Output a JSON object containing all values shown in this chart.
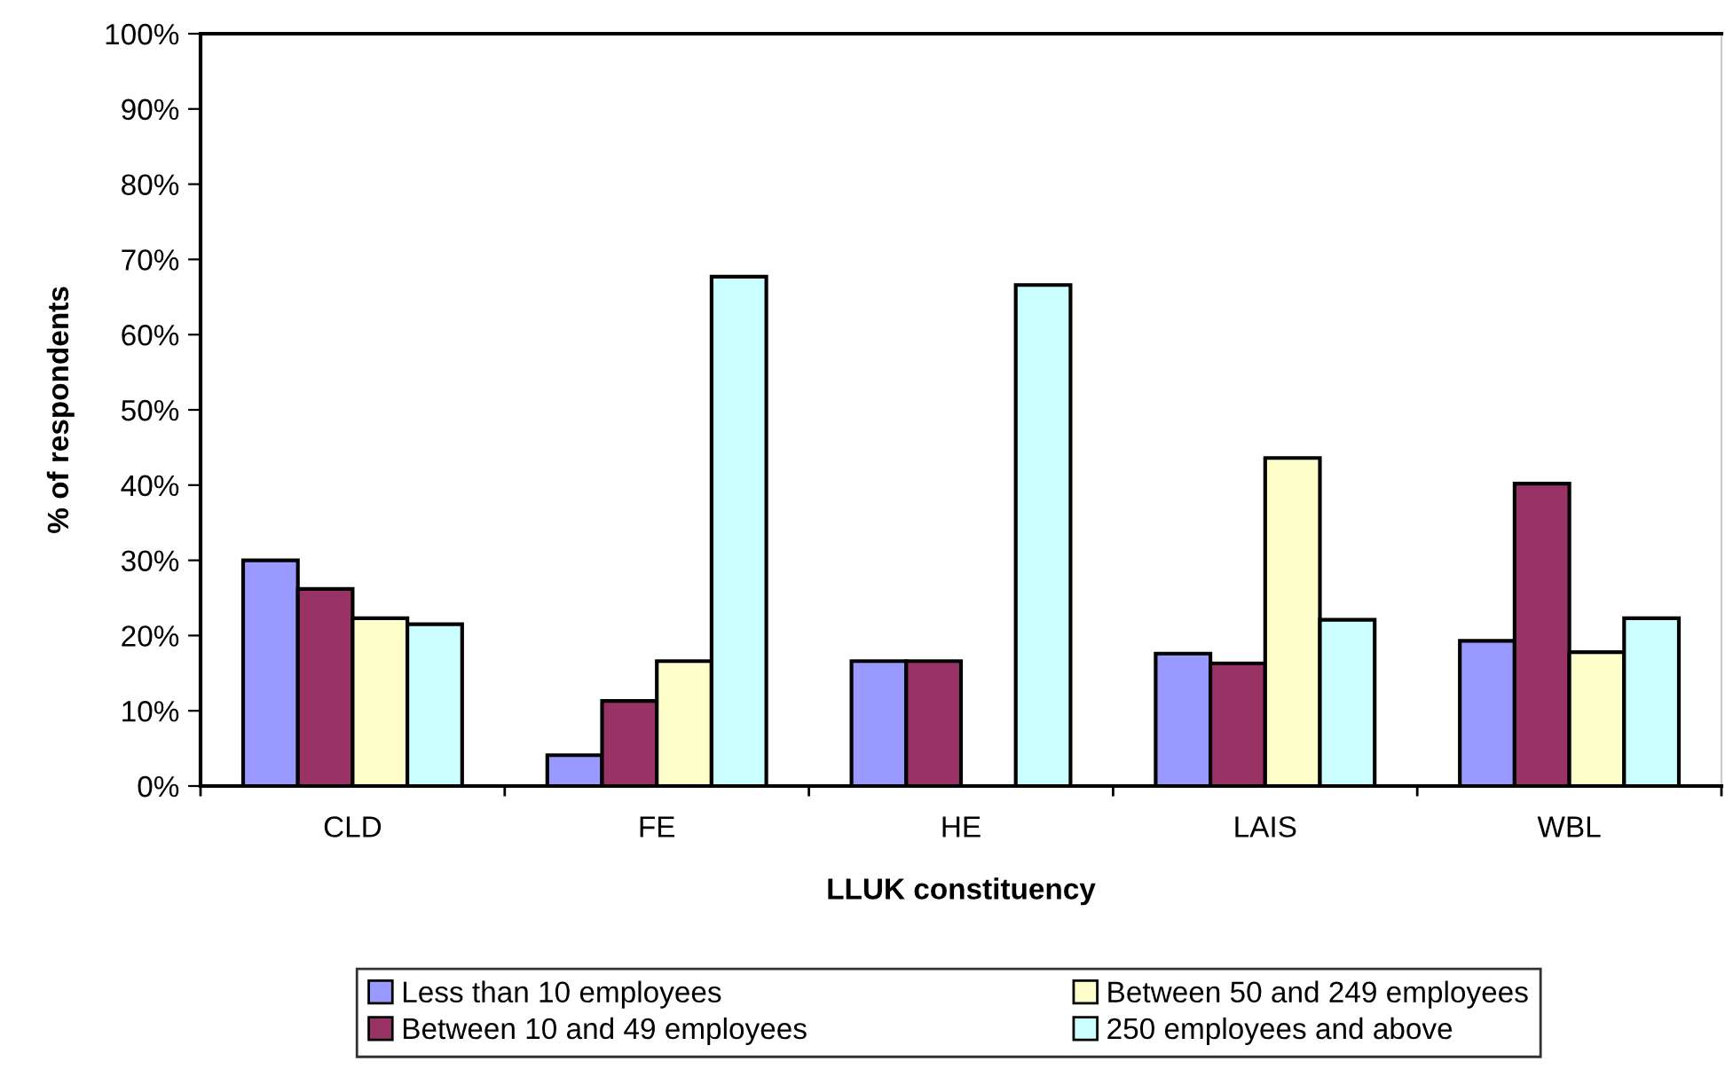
{
  "chart_data": {
    "type": "bar",
    "xlabel": "LLUK constituency",
    "ylabel": "% of respondents",
    "categories": [
      "CLD",
      "FE",
      "HE",
      "LAIS",
      "WBL"
    ],
    "series": [
      {
        "name": "Less than 10 employees",
        "color": "#9999ff",
        "values": [
          30.0,
          4.1,
          16.6,
          17.6,
          19.3
        ]
      },
      {
        "name": "Between 10 and 49 employees",
        "color": "#993366",
        "values": [
          26.2,
          11.3,
          16.6,
          16.3,
          40.2
        ]
      },
      {
        "name": "Between 50 and 249 employees",
        "color": "#ffffcc",
        "values": [
          22.3,
          16.6,
          null,
          43.6,
          17.8
        ]
      },
      {
        "name": "250 employees and above",
        "color": "#ccffff",
        "values": [
          21.5,
          67.7,
          66.6,
          22.1,
          22.3
        ]
      }
    ],
    "ylim": [
      0,
      100
    ],
    "yticks": [
      {
        "value": 0,
        "label": "0%"
      },
      {
        "value": 10,
        "label": "10%"
      },
      {
        "value": 20,
        "label": "20%"
      },
      {
        "value": 30,
        "label": "30%"
      },
      {
        "value": 40,
        "label": "40%"
      },
      {
        "value": 50,
        "label": "50%"
      },
      {
        "value": 60,
        "label": "60%"
      },
      {
        "value": 70,
        "label": "70%"
      },
      {
        "value": 80,
        "label": "80%"
      },
      {
        "value": 90,
        "label": "90%"
      },
      {
        "value": 100,
        "label": "100%"
      }
    ],
    "grid": false,
    "legend": "bottom"
  }
}
